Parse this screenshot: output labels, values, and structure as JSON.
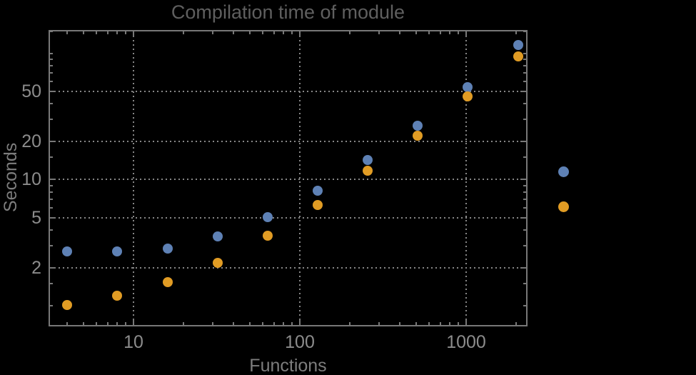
{
  "chart_data": {
    "type": "scatter",
    "title": "Compilation time of module",
    "xlabel": "Functions",
    "ylabel": "Seconds",
    "xscale": "log",
    "yscale": "log",
    "xlim": [
      3.1,
      2290
    ],
    "ylim": [
      0.69,
      151
    ],
    "grid": "dotted lines at labeled major ticks",
    "x": [
      4,
      8,
      16,
      32,
      64,
      128,
      256,
      512,
      1024,
      2048
    ],
    "series": [
      {
        "marker_color": "#5e81b5",
        "values": [
          2.7,
          2.7,
          2.85,
          3.55,
          5.05,
          8.2,
          14.4,
          26.9,
          54.3,
          117
        ]
      },
      {
        "marker_color": "#e19c24",
        "values": [
          1.02,
          1.2,
          1.55,
          2.2,
          3.6,
          6.3,
          11.8,
          22.4,
          45.8,
          95
        ]
      }
    ],
    "x_axis": {
      "major_ticks": [
        10,
        100,
        1000
      ],
      "major_labels": [
        "10",
        "100",
        "1000"
      ],
      "minor_ticks": [
        4,
        5,
        6,
        7,
        8,
        9,
        20,
        30,
        40,
        50,
        60,
        70,
        80,
        90,
        200,
        300,
        400,
        500,
        600,
        700,
        800,
        900,
        2000
      ]
    },
    "y_axis": {
      "major_ticks": [
        2,
        5,
        10,
        20,
        50
      ],
      "major_labels": [
        "2",
        "5",
        "10",
        "20",
        "50"
      ],
      "minor_ticks": [
        1,
        1.5,
        3,
        4,
        6,
        7,
        8,
        9,
        15,
        30,
        40,
        60,
        70,
        80,
        90,
        100,
        150
      ]
    },
    "legend": {
      "position": "outside-right",
      "items": [
        {
          "marker_color": "#5e81b5",
          "label": ""
        },
        {
          "marker_color": "#e19c24",
          "label": ""
        }
      ]
    }
  },
  "colors": {
    "background": "#000000",
    "frame": "#787878",
    "grid": "#878787",
    "tick_label": "#8c8c8c",
    "axis_label": "#7d7d7d",
    "title": "#5f5f5f",
    "series_blue": "#5e81b5",
    "series_orange": "#e19c24"
  }
}
